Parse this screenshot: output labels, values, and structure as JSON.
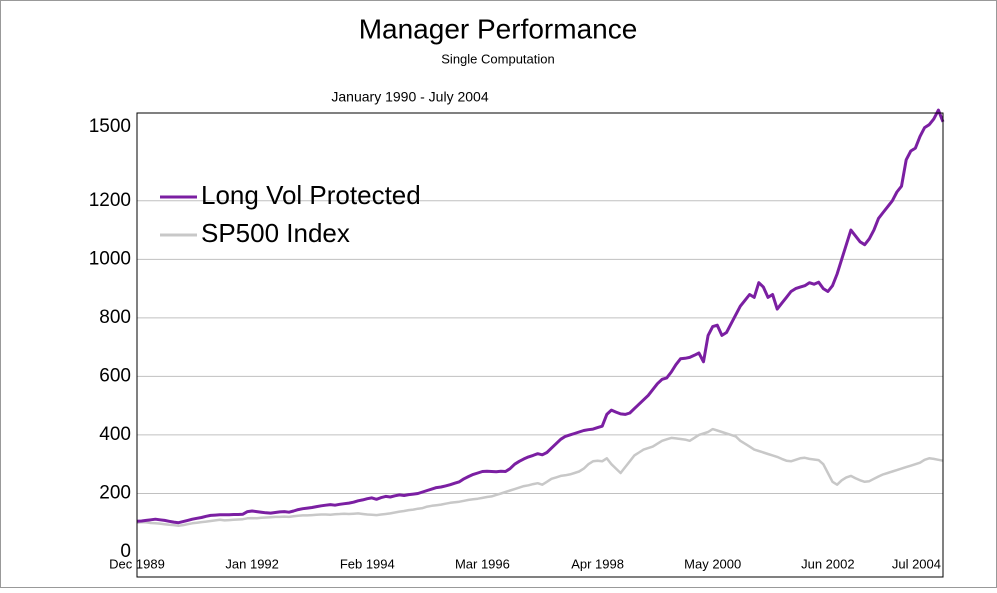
{
  "chart_data": {
    "type": "line",
    "title": "Manager Performance",
    "subtitle": "Single Computation",
    "annotation": "January 1990 - July 2004",
    "categories": [
      "Dec 1989",
      null,
      null,
      null,
      null,
      null,
      null,
      null,
      null,
      null,
      null,
      null,
      null,
      null,
      null,
      null,
      null,
      null,
      null,
      null,
      null,
      null,
      null,
      null,
      null,
      "Jan 1992",
      null,
      null,
      null,
      null,
      null,
      null,
      null,
      null,
      null,
      null,
      null,
      null,
      null,
      null,
      null,
      null,
      null,
      null,
      null,
      null,
      null,
      null,
      null,
      null,
      "Feb 1994",
      null,
      null,
      null,
      null,
      null,
      null,
      null,
      null,
      null,
      null,
      null,
      null,
      null,
      null,
      null,
      null,
      null,
      null,
      null,
      null,
      null,
      null,
      null,
      null,
      "Mar 1996",
      null,
      null,
      null,
      null,
      null,
      null,
      null,
      null,
      null,
      null,
      null,
      null,
      null,
      null,
      null,
      null,
      null,
      null,
      null,
      null,
      null,
      null,
      null,
      null,
      "Apr 1998",
      null,
      null,
      null,
      null,
      null,
      null,
      null,
      null,
      null,
      null,
      null,
      null,
      null,
      null,
      null,
      null,
      null,
      null,
      null,
      null,
      null,
      null,
      null,
      null,
      "May 2000",
      null,
      null,
      null,
      null,
      null,
      null,
      null,
      null,
      null,
      null,
      null,
      null,
      null,
      null,
      null,
      null,
      null,
      null,
      null,
      null,
      null,
      null,
      null,
      null,
      "Jun 2002",
      null,
      null,
      null,
      null,
      null,
      null,
      null,
      null,
      null,
      null,
      null,
      null,
      null,
      null,
      null,
      null,
      null,
      null,
      null,
      null,
      null,
      null,
      null,
      null,
      "Jul 2004"
    ],
    "series": [
      {
        "name": "Long Vol Protected",
        "color": "#7b1fa2",
        "values": [
          105,
          106,
          108,
          110,
          112,
          110,
          108,
          105,
          102,
          100,
          104,
          108,
          112,
          115,
          118,
          122,
          125,
          126,
          127,
          127,
          127,
          128,
          128,
          129,
          138,
          140,
          138,
          136,
          134,
          133,
          135,
          137,
          138,
          136,
          140,
          145,
          148,
          150,
          152,
          155,
          158,
          160,
          162,
          160,
          163,
          165,
          167,
          170,
          175,
          178,
          182,
          185,
          180,
          186,
          190,
          188,
          192,
          195,
          193,
          196,
          198,
          200,
          205,
          210,
          215,
          220,
          222,
          226,
          230,
          235,
          240,
          250,
          258,
          265,
          270,
          275,
          276,
          275,
          274,
          276,
          275,
          285,
          300,
          310,
          318,
          325,
          330,
          336,
          332,
          340,
          355,
          370,
          385,
          395,
          400,
          405,
          410,
          415,
          418,
          420,
          425,
          430,
          470,
          485,
          478,
          472,
          470,
          475,
          490,
          505,
          520,
          535,
          555,
          575,
          590,
          595,
          615,
          640,
          660,
          662,
          665,
          672,
          680,
          650,
          740,
          770,
          775,
          740,
          750,
          780,
          810,
          840,
          860,
          880,
          870,
          920,
          905,
          870,
          880,
          830,
          850,
          870,
          890,
          900,
          905,
          910,
          920,
          915,
          922,
          900,
          890,
          910,
          950,
          1000,
          1050,
          1100,
          1080,
          1060,
          1050,
          1070,
          1100,
          1140,
          1160,
          1180,
          1200,
          1230,
          1250,
          1340,
          1370,
          1380,
          1420,
          1450,
          1460,
          1480,
          1510,
          1470
        ]
      },
      {
        "name": "SP500 Index",
        "color": "#c8c8c8",
        "values": [
          100,
          102,
          101,
          99,
          98,
          97,
          95,
          93,
          92,
          90,
          92,
          95,
          98,
          100,
          102,
          104,
          106,
          108,
          110,
          108,
          109,
          110,
          111,
          112,
          115,
          116,
          115,
          117,
          118,
          119,
          120,
          120,
          121,
          120,
          122,
          124,
          125,
          125,
          126,
          127,
          128,
          128,
          127,
          129,
          130,
          131,
          130,
          131,
          132,
          130,
          128,
          127,
          126,
          128,
          130,
          132,
          135,
          138,
          140,
          143,
          145,
          148,
          150,
          155,
          158,
          160,
          162,
          165,
          168,
          170,
          172,
          175,
          178,
          180,
          182,
          185,
          188,
          190,
          195,
          200,
          205,
          210,
          215,
          220,
          225,
          228,
          232,
          235,
          230,
          240,
          250,
          255,
          260,
          262,
          265,
          270,
          275,
          285,
          300,
          310,
          312,
          310,
          320,
          300,
          285,
          270,
          290,
          310,
          330,
          340,
          350,
          355,
          360,
          370,
          380,
          385,
          390,
          388,
          386,
          384,
          380,
          390,
          400,
          405,
          410,
          420,
          415,
          410,
          405,
          400,
          395,
          380,
          370,
          360,
          350,
          345,
          340,
          335,
          330,
          325,
          318,
          312,
          310,
          315,
          320,
          322,
          318,
          316,
          314,
          300,
          270,
          240,
          230,
          245,
          255,
          260,
          252,
          245,
          240,
          242,
          250,
          258,
          265,
          270,
          275,
          280,
          285,
          290,
          295,
          300,
          305,
          315,
          320,
          318,
          315,
          312
        ]
      }
    ],
    "ylim": [
      0,
      1500
    ],
    "yticks": [
      0,
      200,
      400,
      600,
      800,
      1000,
      1200,
      1500
    ],
    "grid": true,
    "legend": "upper left"
  }
}
